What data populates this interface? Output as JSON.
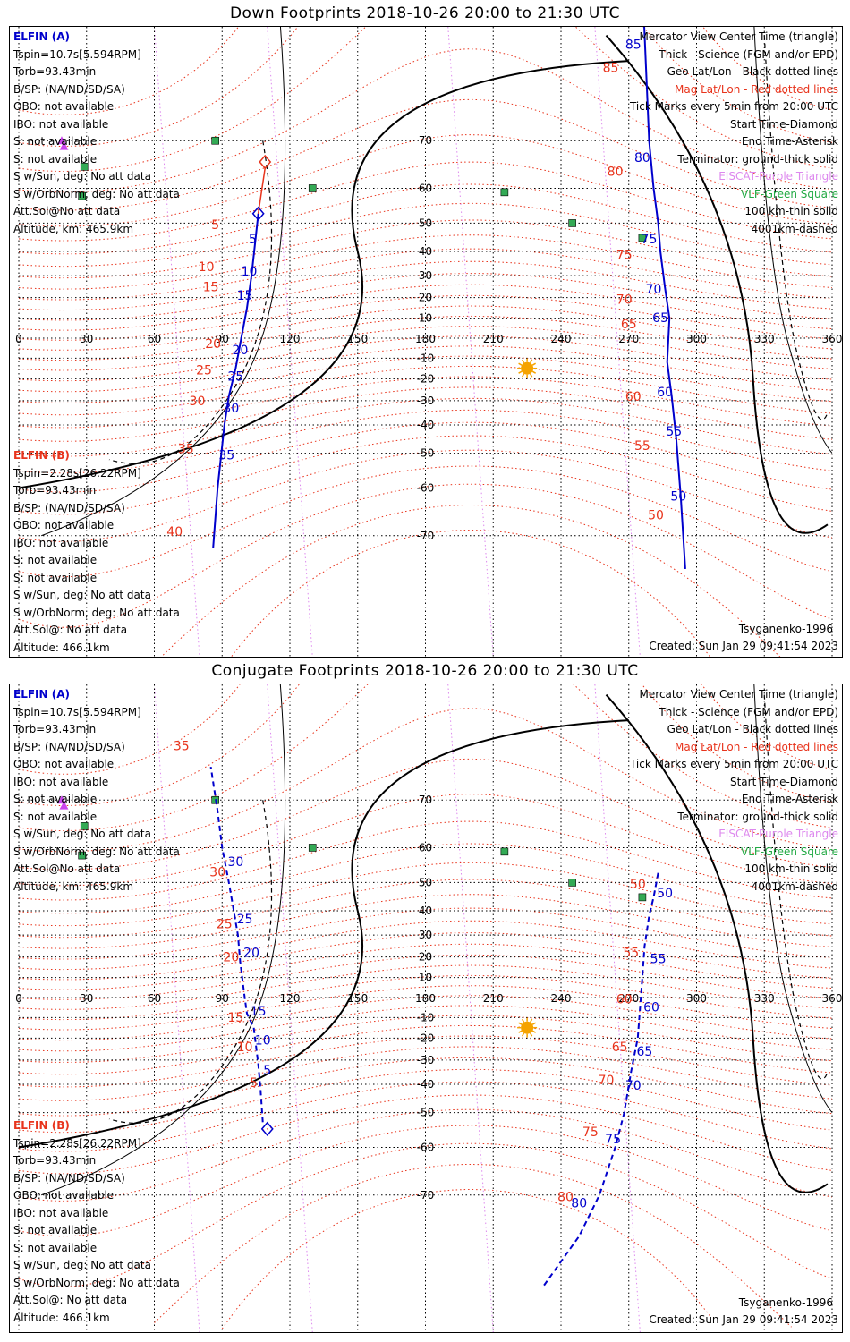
{
  "panels": [
    {
      "title": "Down Footprints 2018-10-26 20:00 to 21:30 UTC",
      "left_a": {
        "header": "ELFIN (A)",
        "lines": [
          "Tspin=10.7s[5.594RPM]",
          "Torb=93.43min",
          "B/SP: (NA/ND/SD/SA)",
          "OBO: not available",
          "IBO: not available",
          "S: not available",
          "S: not available",
          "S w/Sun, deg: No att data",
          "S w/OrbNorm, deg: No att data",
          "Att.Sol@No att data",
          "Altitude, km: 465.9km"
        ]
      },
      "left_b": {
        "header": "ELFIN (B)",
        "lines": [
          "Tspin=2.28s[26.22RPM]",
          "Torb=93.43min",
          "B/SP: (NA/ND/SD/SA)",
          "OBO: not available",
          "IBO: not available",
          "S: not available",
          "S: not available",
          "S w/Sun, deg: No att data",
          "S w/OrbNorm, deg: No att data",
          "Att.Sol@: No att data",
          "Altitude: 466.1km"
        ]
      },
      "legend": [
        {
          "text": "Mercator View Center Time (triangle)",
          "color": "#000000"
        },
        {
          "text": "Thick - Science (FGM and/or EPD)",
          "color": "#000000"
        },
        {
          "text": "Geo Lat/Lon - Black dotted lines",
          "color": "#000000"
        },
        {
          "text": "Mag Lat/Lon - Red dotted lines",
          "color": "#e8341c"
        },
        {
          "text": "Tick Marks every 5min from 20:00 UTC",
          "color": "#000000"
        },
        {
          "text": "Start Time-Diamond",
          "color": "#000000"
        },
        {
          "text": "End Time-Asterisk",
          "color": "#000000"
        },
        {
          "text": "Terminator: ground-thick solid",
          "color": "#000000"
        },
        {
          "text": "EISCAT-Purple Triangle",
          "color": "#dd88ee"
        },
        {
          "text": "VLF-Green Square",
          "color": "#22aa44"
        },
        {
          "text": "100 km-thin solid",
          "color": "#000000"
        },
        {
          "text": "4001km-dashed",
          "color": "#000000"
        }
      ],
      "model": "Tsyganenko-1996",
      "created": "Created: Sun Jan 29 09:41:54 2023",
      "traces": {
        "dashed": false,
        "a_points": [
          [
            106,
            53
          ],
          [
            103,
            30
          ],
          [
            101,
            15
          ],
          [
            98,
            -3
          ],
          [
            96,
            -15
          ],
          [
            93,
            -28
          ],
          [
            91,
            -40
          ],
          [
            88,
            -60
          ],
          [
            86,
            -72
          ]
        ],
        "b_points": [
          [
            276,
            85
          ],
          [
            279,
            70
          ],
          [
            281,
            60
          ],
          [
            283,
            50
          ],
          [
            284,
            40
          ],
          [
            286,
            25
          ],
          [
            288,
            10
          ],
          [
            287,
            -12
          ],
          [
            289,
            -28
          ],
          [
            291,
            -45
          ],
          [
            293,
            -62
          ],
          [
            295,
            -75
          ]
        ],
        "a_labels": [
          {
            "t": "5",
            "x": 103.5,
            "y": 43
          },
          {
            "t": "10",
            "x": 102,
            "y": 30
          },
          {
            "t": "15",
            "x": 100,
            "y": 19
          },
          {
            "t": "20",
            "x": 98,
            "y": -8
          },
          {
            "t": "25",
            "x": 96,
            "y": -21
          },
          {
            "t": "30",
            "x": 94,
            "y": -35
          },
          {
            "t": "35",
            "x": 92,
            "y": -52
          }
        ],
        "a_mag_labels": [
          {
            "t": "5",
            "x": 87,
            "y": 48
          },
          {
            "t": "10",
            "x": 83,
            "y": 32
          },
          {
            "t": "15",
            "x": 85,
            "y": 23
          },
          {
            "t": "20",
            "x": 86,
            "y": -5
          },
          {
            "t": "25",
            "x": 82,
            "y": -18
          },
          {
            "t": "30",
            "x": 79,
            "y": -32
          },
          {
            "t": "35",
            "x": 74,
            "y": -50
          },
          {
            "t": "40",
            "x": 69,
            "y": -70
          }
        ],
        "b_labels": [
          {
            "t": "85",
            "x": 272,
            "y": 81
          },
          {
            "t": "80",
            "x": 276,
            "y": 66
          },
          {
            "t": "75",
            "x": 279,
            "y": 43
          },
          {
            "t": "70",
            "x": 281,
            "y": 22
          },
          {
            "t": "65",
            "x": 284,
            "y": 8
          },
          {
            "t": "60",
            "x": 286,
            "y": -28
          },
          {
            "t": "55",
            "x": 290,
            "y": -44
          },
          {
            "t": "50",
            "x": 292,
            "y": -63
          }
        ],
        "b_mag_labels": [
          {
            "t": "85",
            "x": 262,
            "y": 79
          },
          {
            "t": "80",
            "x": 264,
            "y": 63
          },
          {
            "t": "75",
            "x": 268,
            "y": 37
          },
          {
            "t": "70",
            "x": 268,
            "y": 17
          },
          {
            "t": "65",
            "x": 270,
            "y": 5
          },
          {
            "t": "60",
            "x": 272,
            "y": -30
          },
          {
            "t": "55",
            "x": 276,
            "y": -49
          },
          {
            "t": "50",
            "x": 282,
            "y": -67
          }
        ],
        "start_diamond": {
          "x": 109,
          "y": 66,
          "color": "#e8341c"
        },
        "view_diamond": {
          "x": 106,
          "y": 53,
          "color": "#0000cc"
        }
      }
    },
    {
      "title": "Conjugate Footprints 2018-10-26 20:00 to 21:30 UTC",
      "left_a": {
        "header": "ELFIN (A)",
        "lines": [
          "Tspin=10.7s[5.594RPM]",
          "Torb=93.43min",
          "B/SP: (NA/ND/SD/SA)",
          "OBO: not available",
          "IBO: not available",
          "S: not available",
          "S: not available",
          "S w/Sun, deg: No att data",
          "S w/OrbNorm, deg: No att data",
          "Att.Sol@No att data",
          "Altitude, km: 465.9km"
        ]
      },
      "left_b": {
        "header": "ELFIN (B)",
        "lines": [
          "Tspin=2.28s[26.22RPM]",
          "Torb=93.43min",
          "B/SP: (NA/ND/SD/SA)",
          "OBO: not available",
          "IBO: not available",
          "S: not available",
          "S: not available",
          "S w/Sun, deg: No att data",
          "S w/OrbNorm, deg: No att data",
          "Att.Sol@: No att data",
          "Altitude: 466.1km"
        ]
      },
      "legend": [
        {
          "text": "Mercator View Center Time (triangle)",
          "color": "#000000"
        },
        {
          "text": "Thick - Science (FGM and/or EPD)",
          "color": "#000000"
        },
        {
          "text": "Geo Lat/Lon - Black dotted lines",
          "color": "#000000"
        },
        {
          "text": "Mag Lat/Lon - Red dotted lines",
          "color": "#e8341c"
        },
        {
          "text": "Tick Marks every 5min from 20:00 UTC",
          "color": "#000000"
        },
        {
          "text": "Start Time-Diamond",
          "color": "#000000"
        },
        {
          "text": "End Time-Asterisk",
          "color": "#000000"
        },
        {
          "text": "Terminator: ground-thick solid",
          "color": "#000000"
        },
        {
          "text": "EISCAT-Purple Triangle",
          "color": "#dd88ee"
        },
        {
          "text": "VLF-Green Square",
          "color": "#22aa44"
        },
        {
          "text": "100 km-thin solid",
          "color": "#000000"
        },
        {
          "text": "4001km-dashed",
          "color": "#000000"
        }
      ],
      "model": "Tsyganenko-1996",
      "created": "Created: Sun Jan 29 09:41:54 2023",
      "traces": {
        "dashed": true,
        "a_points": [
          [
            108,
            -53
          ],
          [
            107,
            -42
          ],
          [
            106,
            -32
          ],
          [
            104,
            -15
          ],
          [
            101,
            -8
          ],
          [
            100,
            0
          ],
          [
            98,
            18
          ],
          [
            97,
            30
          ],
          [
            93,
            50
          ],
          [
            90,
            60
          ],
          [
            88,
            68
          ],
          [
            85,
            75
          ]
        ],
        "b_points": [
          [
            283,
            53
          ],
          [
            281,
            45
          ],
          [
            279,
            38
          ],
          [
            277,
            25
          ],
          [
            276,
            10
          ],
          [
            275,
            -5
          ],
          [
            274,
            -20
          ],
          [
            271,
            -35
          ],
          [
            268,
            -50
          ],
          [
            264,
            -60
          ],
          [
            257,
            -70
          ],
          [
            248,
            -76
          ],
          [
            232,
            -81
          ]
        ],
        "a_labels": [
          {
            "t": "5",
            "x": 110,
            "y": -36
          },
          {
            "t": "10",
            "x": 108,
            "y": -23
          },
          {
            "t": "15",
            "x": 106,
            "y": -9
          },
          {
            "t": "20",
            "x": 103,
            "y": 20
          },
          {
            "t": "25",
            "x": 100,
            "y": 35
          },
          {
            "t": "30",
            "x": 96,
            "y": 55
          }
        ],
        "a_mag_labels": [
          {
            "t": "5",
            "x": 104,
            "y": -41
          },
          {
            "t": "10",
            "x": 100,
            "y": -26
          },
          {
            "t": "15",
            "x": 96,
            "y": -12
          },
          {
            "t": "20",
            "x": 94,
            "y": 18
          },
          {
            "t": "25",
            "x": 91,
            "y": 33
          },
          {
            "t": "30",
            "x": 88,
            "y": 52
          },
          {
            "t": "35",
            "x": 72,
            "y": 77
          }
        ],
        "b_labels": [
          {
            "t": "50",
            "x": 286,
            "y": 45
          },
          {
            "t": "55",
            "x": 283,
            "y": 17
          },
          {
            "t": "60",
            "x": 280,
            "y": -7
          },
          {
            "t": "65",
            "x": 277,
            "y": -28
          },
          {
            "t": "70",
            "x": 272,
            "y": -42
          },
          {
            "t": "75",
            "x": 263,
            "y": -59
          },
          {
            "t": "80",
            "x": 248,
            "y": -72
          }
        ],
        "b_mag_labels": [
          {
            "t": "50",
            "x": 274,
            "y": 48
          },
          {
            "t": "55",
            "x": 271,
            "y": 20
          },
          {
            "t": "60",
            "x": 268,
            "y": -3
          },
          {
            "t": "65",
            "x": 266,
            "y": -26
          },
          {
            "t": "70",
            "x": 260,
            "y": -40
          },
          {
            "t": "75",
            "x": 253,
            "y": -57
          },
          {
            "t": "80",
            "x": 242,
            "y": -71
          }
        ],
        "end_diamond": {
          "x": 110,
          "y": -55,
          "color": "#0000cc"
        }
      }
    }
  ],
  "map": {
    "lon_ticks": [
      0,
      30,
      60,
      90,
      120,
      150,
      180,
      210,
      240,
      270,
      300,
      330,
      360
    ],
    "lat_ticks": [
      -70,
      -60,
      -50,
      -40,
      -30,
      -20,
      -10,
      10,
      20,
      30,
      40,
      50,
      60,
      70
    ],
    "sun": {
      "lon": 225,
      "lat": -15,
      "color": "#f5a300"
    },
    "vlf_sites": [
      [
        87,
        70
      ],
      [
        29,
        65
      ],
      [
        28,
        58
      ],
      [
        130,
        60
      ],
      [
        215,
        59
      ],
      [
        245,
        50
      ],
      [
        276,
        45
      ]
    ],
    "eiscat_sites": [
      [
        19,
        70
      ],
      [
        20,
        69
      ]
    ],
    "colors": {
      "sc_a": "#0000cc",
      "mag": "#e8341c",
      "eiscat": "#cc44ee",
      "vlf": "#33aa55",
      "geo_grid": "#000000"
    }
  }
}
